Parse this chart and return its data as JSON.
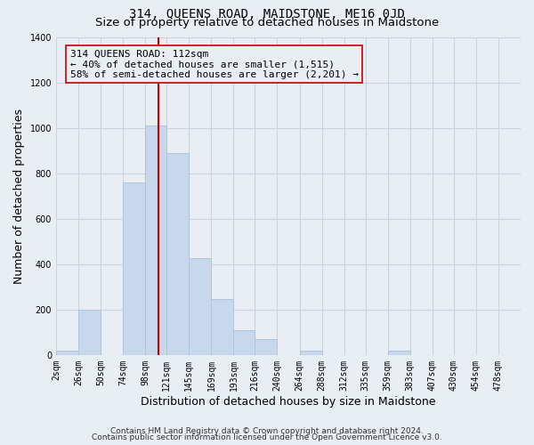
{
  "title": "314, QUEENS ROAD, MAIDSTONE, ME16 0JD",
  "subtitle": "Size of property relative to detached houses in Maidstone",
  "xlabel": "Distribution of detached houses by size in Maidstone",
  "ylabel": "Number of detached properties",
  "footnote1": "Contains HM Land Registry data © Crown copyright and database right 2024.",
  "footnote2": "Contains public sector information licensed under the Open Government Licence v3.0.",
  "bar_left_edges": [
    2,
    26,
    50,
    74,
    98,
    121,
    145,
    169,
    193,
    216,
    240,
    264,
    288,
    312,
    335,
    359,
    383,
    407,
    430,
    454
  ],
  "bar_heights": [
    20,
    200,
    0,
    760,
    1010,
    890,
    425,
    245,
    110,
    70,
    0,
    20,
    0,
    0,
    0,
    20,
    0,
    0,
    0,
    0
  ],
  "bar_widths": [
    24,
    24,
    24,
    24,
    23,
    24,
    24,
    24,
    23,
    24,
    24,
    24,
    24,
    23,
    24,
    24,
    24,
    23,
    24,
    24
  ],
  "bar_color": "#c8d8ec",
  "bar_edge_color": "#b0c4de",
  "x_tick_labels": [
    "2sqm",
    "26sqm",
    "50sqm",
    "74sqm",
    "98sqm",
    "121sqm",
    "145sqm",
    "169sqm",
    "193sqm",
    "216sqm",
    "240sqm",
    "264sqm",
    "288sqm",
    "312sqm",
    "335sqm",
    "359sqm",
    "383sqm",
    "407sqm",
    "430sqm",
    "454sqm",
    "478sqm"
  ],
  "x_tick_positions": [
    2,
    26,
    50,
    74,
    98,
    121,
    145,
    169,
    193,
    216,
    240,
    264,
    288,
    312,
    335,
    359,
    383,
    407,
    430,
    454,
    478
  ],
  "ylim": [
    0,
    1400
  ],
  "xlim": [
    2,
    502
  ],
  "vline_x": 112,
  "vline_color": "#cc0000",
  "annotation_title": "314 QUEENS ROAD: 112sqm",
  "annotation_line1": "← 40% of detached houses are smaller (1,515)",
  "annotation_line2": "58% of semi-detached houses are larger (2,201) →",
  "grid_color": "#c8d4e0",
  "background_color": "#e8eef4",
  "plot_bg_color": "#e8eef4",
  "title_fontsize": 10,
  "subtitle_fontsize": 9.5,
  "axis_label_fontsize": 9,
  "tick_fontsize": 7,
  "annotation_fontsize": 8,
  "footnote_fontsize": 6.5
}
